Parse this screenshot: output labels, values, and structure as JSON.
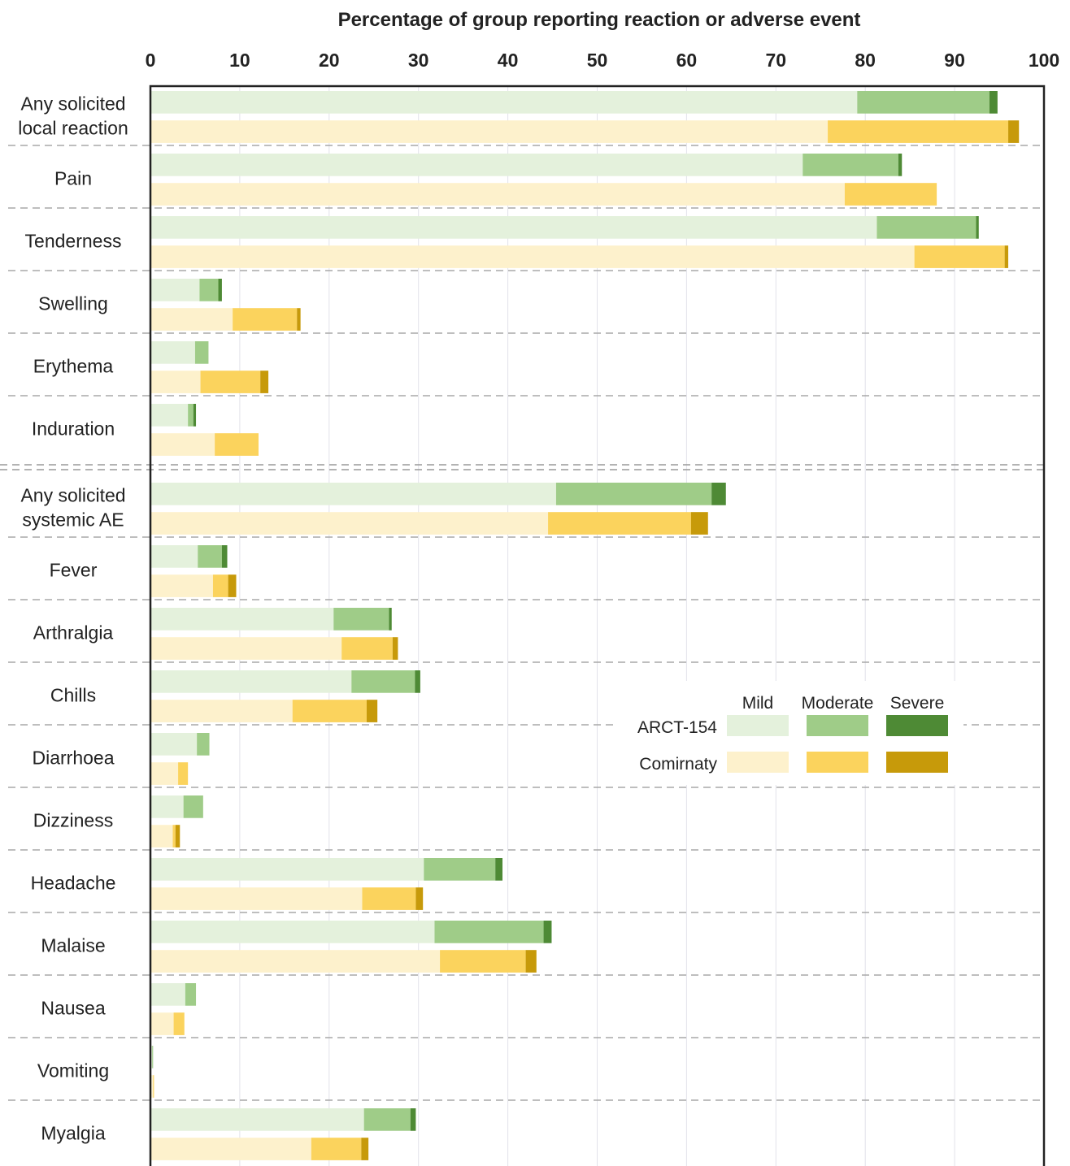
{
  "chart_data": {
    "type": "bar",
    "orientation": "horizontal",
    "stacked": true,
    "title": "Percentage of group reporting reaction or adverse event",
    "xlim": [
      0,
      100
    ],
    "xticks": [
      "0",
      "10",
      "20",
      "30",
      "40",
      "50",
      "60",
      "70",
      "80",
      "90",
      "100"
    ],
    "axis_position": "top",
    "grid": true,
    "legend_position": "right-middle",
    "legend": {
      "columns": [
        "Mild",
        "Moderate",
        "Severe"
      ],
      "rows": [
        "ARCT-154",
        "Comirnaty"
      ]
    },
    "colors": {
      "ARCT-154": [
        "#e4f1dc",
        "#9fcc88",
        "#4e8a35"
      ],
      "Comirnaty": [
        "#fdf1cc",
        "#fbd35d",
        "#c79a0a"
      ]
    },
    "categories": [
      [
        "Any solicited",
        "local reaction"
      ],
      [
        "Pain"
      ],
      [
        "Tenderness"
      ],
      [
        "Swelling"
      ],
      [
        "Erythema"
      ],
      [
        "Induration"
      ],
      [
        "Any solicited",
        "systemic AE"
      ],
      [
        "Fever"
      ],
      [
        "Arthralgia"
      ],
      [
        "Chills"
      ],
      [
        "Diarrhoea"
      ],
      [
        "Dizziness"
      ],
      [
        "Headache"
      ],
      [
        "Malaise"
      ],
      [
        "Nausea"
      ],
      [
        "Vomiting"
      ],
      [
        "Myalgia"
      ]
    ],
    "section_break_after_index": 5,
    "series": [
      {
        "name": "ARCT-154",
        "mild": [
          79.1,
          73.0,
          81.3,
          5.5,
          5.0,
          4.2,
          45.4,
          5.3,
          20.5,
          22.5,
          5.2,
          3.7,
          30.6,
          31.8,
          3.9,
          0.2,
          23.9
        ],
        "moderate": [
          14.8,
          10.7,
          11.1,
          2.1,
          1.5,
          0.6,
          17.4,
          2.7,
          6.2,
          7.1,
          1.4,
          2.2,
          8.0,
          12.2,
          1.2,
          0.1,
          5.2
        ],
        "severe": [
          0.9,
          0.4,
          0.3,
          0.4,
          0.0,
          0.3,
          1.6,
          0.6,
          0.3,
          0.6,
          0.0,
          0.0,
          0.8,
          0.9,
          0.0,
          0.0,
          0.6
        ]
      },
      {
        "name": "Comirnaty",
        "mild": [
          75.8,
          77.7,
          85.5,
          9.2,
          5.6,
          7.2,
          44.5,
          7.0,
          21.4,
          15.9,
          3.1,
          2.5,
          23.7,
          32.4,
          2.6,
          0.3,
          18.0
        ],
        "moderate": [
          20.2,
          10.3,
          10.1,
          7.2,
          6.7,
          4.9,
          16.0,
          1.7,
          5.7,
          8.3,
          1.1,
          0.3,
          6.0,
          9.6,
          1.2,
          0.1,
          5.6
        ],
        "severe": [
          1.2,
          0.0,
          0.4,
          0.4,
          0.9,
          0.0,
          1.9,
          0.9,
          0.6,
          1.2,
          0.0,
          0.5,
          0.8,
          1.2,
          0.0,
          0.0,
          0.8
        ]
      }
    ]
  }
}
